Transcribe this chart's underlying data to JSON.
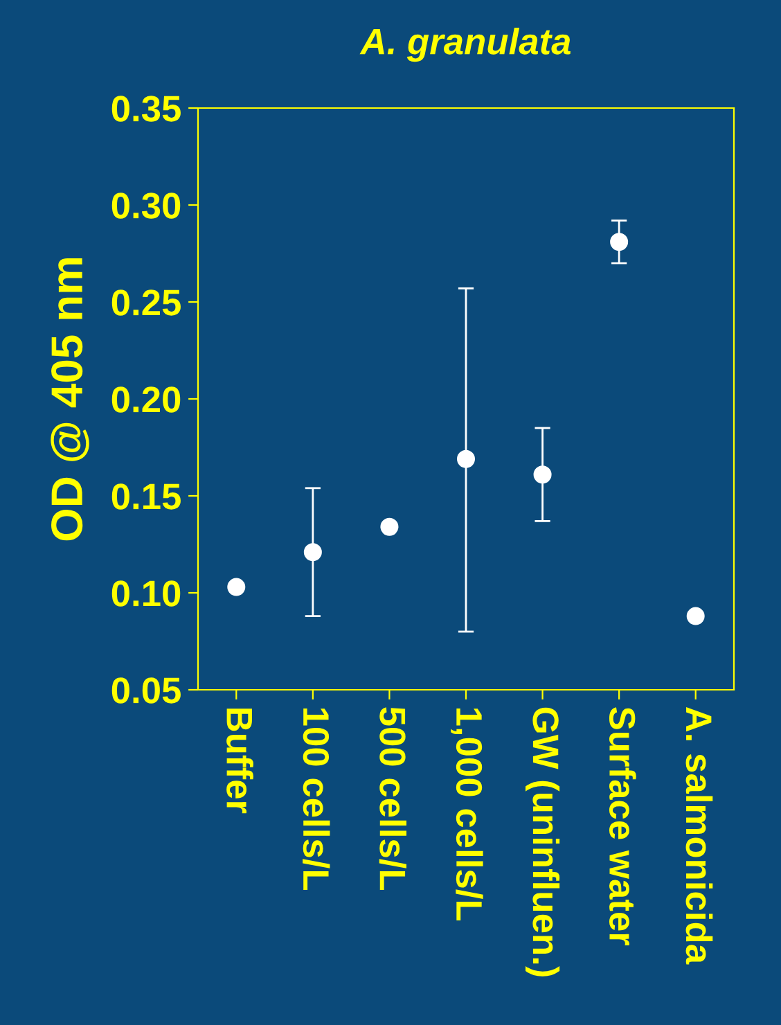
{
  "chart_data": {
    "type": "scatter",
    "title": "A. granulata",
    "ylabel": "OD @ 405 nm",
    "categories": [
      "Buffer",
      "100 cells/L",
      "500 cells/L",
      "1,000 cells/L",
      "GW (uninfluen.)",
      "Surface water",
      "A. salmonicida"
    ],
    "series": [
      {
        "color": "#ffffff",
        "values": [
          0.103,
          0.121,
          0.134,
          0.169,
          0.161,
          0.281,
          0.088
        ],
        "errors": [
          null,
          [
            0.088,
            0.154
          ],
          null,
          [
            0.08,
            0.257
          ],
          [
            0.137,
            0.185
          ],
          [
            0.27,
            0.292
          ],
          null
        ]
      }
    ],
    "ylim": [
      0.05,
      0.35
    ],
    "yticks": [
      0.05,
      {
        "value": 0.1,
        "label": "0.10"
      },
      0.15,
      {
        "value": 0.2,
        "label": "0.20"
      },
      0.25,
      {
        "value": 0.3,
        "label": "0.30"
      },
      0.35
    ],
    "grid": false,
    "marker": "circle",
    "legend": false
  }
}
